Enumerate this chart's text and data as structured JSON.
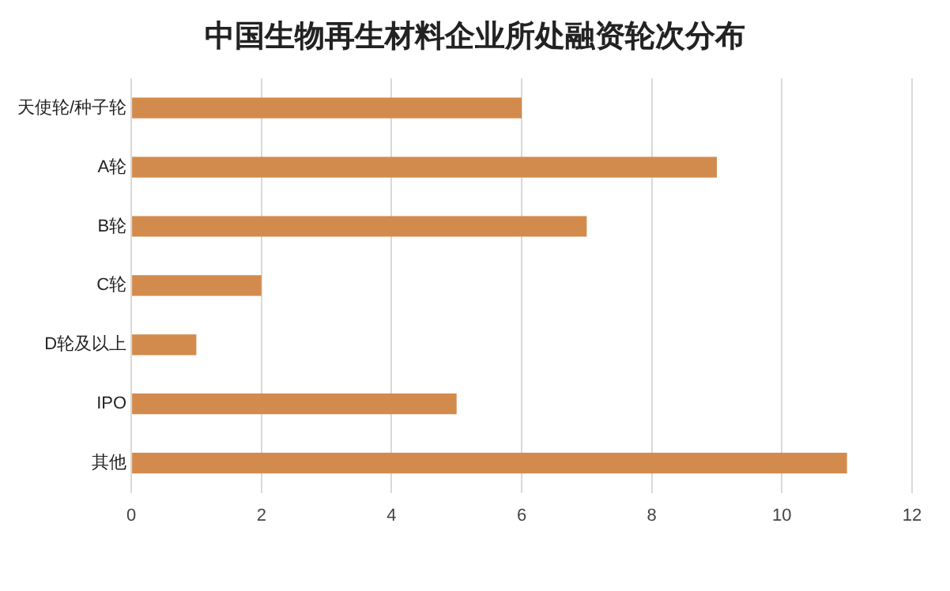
{
  "chart_data": {
    "type": "bar",
    "orientation": "horizontal",
    "title": "中国生物再生材料企业所处融资轮次分布",
    "categories": [
      "天使轮/种子轮",
      "A轮",
      "B轮",
      "C轮",
      "D轮及以上",
      "IPO",
      "其他"
    ],
    "values": [
      6,
      9,
      7,
      2,
      1,
      5,
      11
    ],
    "color": "#d38b4d",
    "xlim": [
      0,
      12
    ],
    "xticks": [
      0,
      2,
      4,
      6,
      8,
      10,
      12
    ],
    "grid": "x"
  }
}
